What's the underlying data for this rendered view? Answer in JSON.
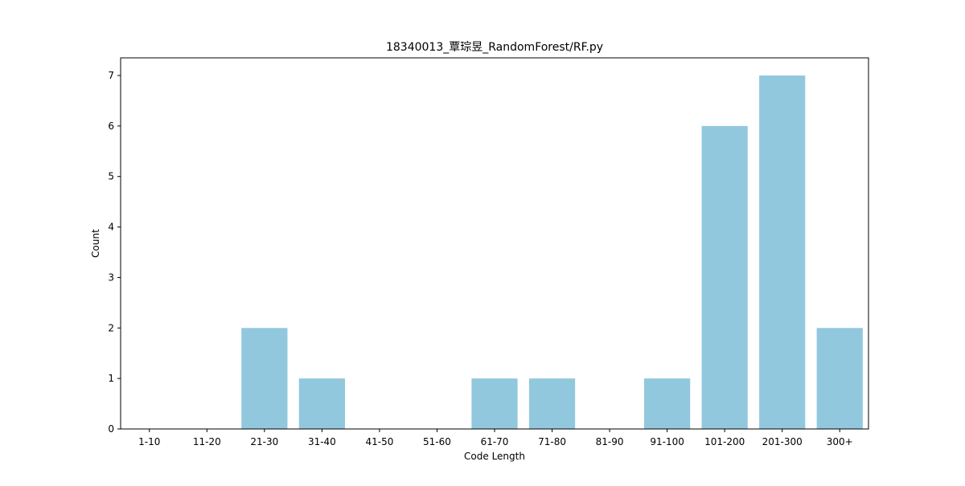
{
  "chart_data": {
    "type": "bar",
    "title": "18340013_覃琮昱_RandomForest/RF.py",
    "xlabel": "Code Length",
    "ylabel": "Count",
    "categories": [
      "1-10",
      "11-20",
      "21-30",
      "31-40",
      "41-50",
      "51-60",
      "61-70",
      "71-80",
      "81-90",
      "91-100",
      "101-200",
      "201-300",
      "300+"
    ],
    "values": [
      0,
      0,
      2,
      1,
      0,
      0,
      1,
      1,
      0,
      1,
      6,
      7,
      2
    ],
    "yticks": [
      0,
      1,
      2,
      3,
      4,
      5,
      6,
      7
    ],
    "ylim": [
      0,
      7.35
    ],
    "grid": false,
    "bar_color": "#92c8de"
  }
}
